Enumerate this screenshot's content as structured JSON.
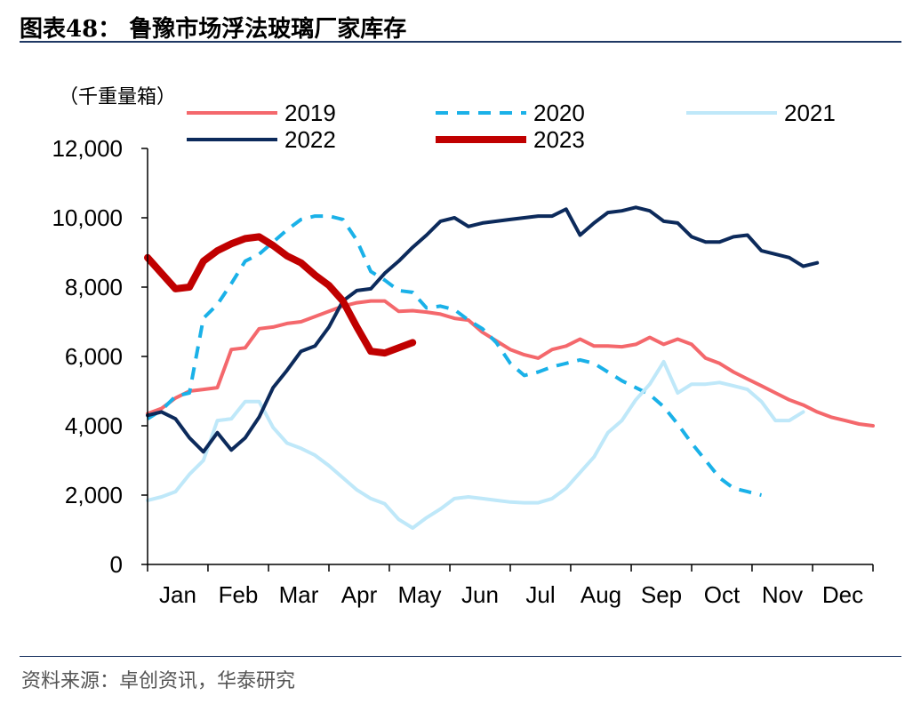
{
  "title": "图表48：  鲁豫市场浮法玻璃厂家库存",
  "source": "资料来源：卓创资讯，华泰研究",
  "chart_data": {
    "type": "line",
    "ylabel": "（千重量箱）",
    "ylim": [
      0,
      12000
    ],
    "yticks": [
      0,
      2000,
      4000,
      6000,
      8000,
      10000,
      12000
    ],
    "ytick_labels": [
      "0",
      "2,000",
      "4,000",
      "6,000",
      "8,000",
      "10,000",
      "12,000"
    ],
    "xlim": [
      1,
      53
    ],
    "xticks": [
      1,
      5.5,
      10,
      14.5,
      19,
      23.5,
      28,
      32.5,
      37,
      41.5,
      46,
      50.5
    ],
    "xtick_labels": [
      "Jan",
      "Feb",
      "Mar",
      "Apr",
      "May",
      "Jun",
      "Jul",
      "Aug",
      "Sep",
      "Oct",
      "Nov",
      "Dec"
    ],
    "x_unit": "week",
    "grid": false,
    "legend_position": "top",
    "series": [
      {
        "name": "2019",
        "color": "#f4686c",
        "width": 4,
        "dash": "",
        "x": [
          1,
          2,
          3,
          4,
          5,
          6,
          7,
          8,
          9,
          10,
          11,
          12,
          13,
          14,
          15,
          16,
          17,
          18,
          19,
          20,
          21,
          22,
          23,
          24,
          25,
          26,
          27,
          28,
          29,
          30,
          31,
          32,
          33,
          34,
          35,
          36,
          37,
          38,
          39,
          40,
          41,
          42,
          43,
          44,
          45,
          46,
          47,
          48,
          49,
          50,
          51,
          52,
          53
        ],
        "values": [
          4350,
          4500,
          4800,
          5000,
          5050,
          5100,
          6200,
          6250,
          6800,
          6850,
          6950,
          7000,
          7150,
          7300,
          7450,
          7550,
          7600,
          7600,
          7300,
          7320,
          7280,
          7220,
          7100,
          7050,
          6700,
          6450,
          6200,
          6050,
          5950,
          6200,
          6300,
          6500,
          6300,
          6300,
          6280,
          6350,
          6550,
          6350,
          6500,
          6350,
          5950,
          5800,
          5550,
          5350,
          5150,
          4950,
          4750,
          4600,
          4400,
          4250,
          4150,
          4050,
          4000
        ]
      },
      {
        "name": "2020",
        "color": "#1ab1e8",
        "width": 4,
        "dash": "14,10",
        "x": [
          1,
          2,
          3,
          4,
          5,
          6,
          7,
          8,
          9,
          10,
          11,
          12,
          13,
          14,
          15,
          16,
          17,
          18,
          19,
          20,
          21,
          22,
          23,
          24,
          25,
          26,
          27,
          28,
          29,
          30,
          31,
          32,
          33,
          34,
          35,
          36,
          37,
          38,
          39,
          40,
          41,
          42,
          43,
          44,
          45,
          46,
          47,
          48,
          49
        ],
        "values": [
          4200,
          4450,
          4850,
          4950,
          7100,
          7500,
          8100,
          8750,
          8950,
          9300,
          9650,
          9950,
          10050,
          10050,
          9950,
          9350,
          8450,
          8200,
          7900,
          7850,
          7400,
          7450,
          7350,
          7050,
          6800,
          6400,
          5800,
          5450,
          5550,
          5700,
          5800,
          5900,
          5800,
          5550,
          5300,
          5100,
          4900,
          4550,
          4050,
          3500,
          3000,
          2500,
          2200,
          2100,
          2000,
          null,
          null,
          null,
          null
        ],
        "note": ""
      },
      {
        "name": "2021",
        "color": "#bfe8f9",
        "width": 4,
        "dash": "",
        "x": [
          1,
          2,
          3,
          4,
          5,
          6,
          7,
          8,
          9,
          10,
          11,
          12,
          13,
          14,
          15,
          16,
          17,
          18,
          19,
          20,
          21,
          22,
          23,
          24,
          25,
          26,
          27,
          28,
          29,
          30,
          31,
          32,
          33,
          34,
          35,
          36,
          37,
          38,
          39,
          40,
          41,
          42,
          43,
          44,
          45,
          46,
          47,
          48,
          49,
          50,
          51,
          52,
          53
        ],
        "values": [
          1850,
          1950,
          2100,
          2600,
          3000,
          4150,
          4200,
          4700,
          4700,
          3950,
          3500,
          3350,
          3150,
          2850,
          2500,
          2150,
          1900,
          1750,
          1300,
          1050,
          1350,
          1600,
          1900,
          1950,
          1900,
          1850,
          1800,
          1780,
          1780,
          1900,
          2200,
          2650,
          3100,
          3800,
          4150,
          4750,
          5200,
          5850,
          4950,
          5200,
          5200,
          5250,
          5150,
          5050,
          4700,
          4150,
          4150,
          4400,
          null,
          null,
          null,
          null,
          null
        ]
      },
      {
        "name": "2022",
        "color": "#0c2a5b",
        "width": 4,
        "dash": "",
        "x": [
          1,
          2,
          3,
          4,
          5,
          6,
          7,
          8,
          9,
          10,
          11,
          12,
          13,
          14,
          15,
          16,
          17,
          18,
          19,
          20,
          21,
          22,
          23,
          24,
          25,
          26,
          27,
          28,
          29,
          30,
          31,
          32,
          33,
          34,
          35,
          36,
          37,
          38,
          39,
          40,
          41,
          42,
          43,
          44,
          45,
          46,
          47,
          48,
          49,
          50,
          51,
          52,
          53
        ],
        "values": [
          4300,
          4400,
          4200,
          3650,
          3250,
          3800,
          3300,
          3650,
          4250,
          5100,
          5600,
          6150,
          6300,
          6850,
          7600,
          7900,
          7950,
          8400,
          8750,
          9150,
          9500,
          9900,
          10000,
          9750,
          9850,
          9900,
          9950,
          10000,
          10050,
          10050,
          10250,
          9500,
          9850,
          10150,
          10200,
          10300,
          10200,
          9900,
          9850,
          9450,
          9300,
          9300,
          9450,
          9500,
          9050,
          8950,
          8850,
          8600,
          8700,
          null,
          null,
          null,
          null
        ]
      },
      {
        "name": "2023",
        "color": "#c00000",
        "width": 8,
        "dash": "",
        "x": [
          1,
          2,
          3,
          4,
          5,
          6,
          7,
          8,
          9,
          10,
          11,
          12,
          13,
          14,
          15,
          16,
          17,
          18,
          19,
          20
        ],
        "values": [
          8850,
          8400,
          7950,
          8000,
          8750,
          9050,
          9250,
          9400,
          9450,
          9200,
          8900,
          8700,
          8350,
          8050,
          7600,
          6850,
          6150,
          6100,
          6250,
          6400
        ]
      }
    ]
  }
}
